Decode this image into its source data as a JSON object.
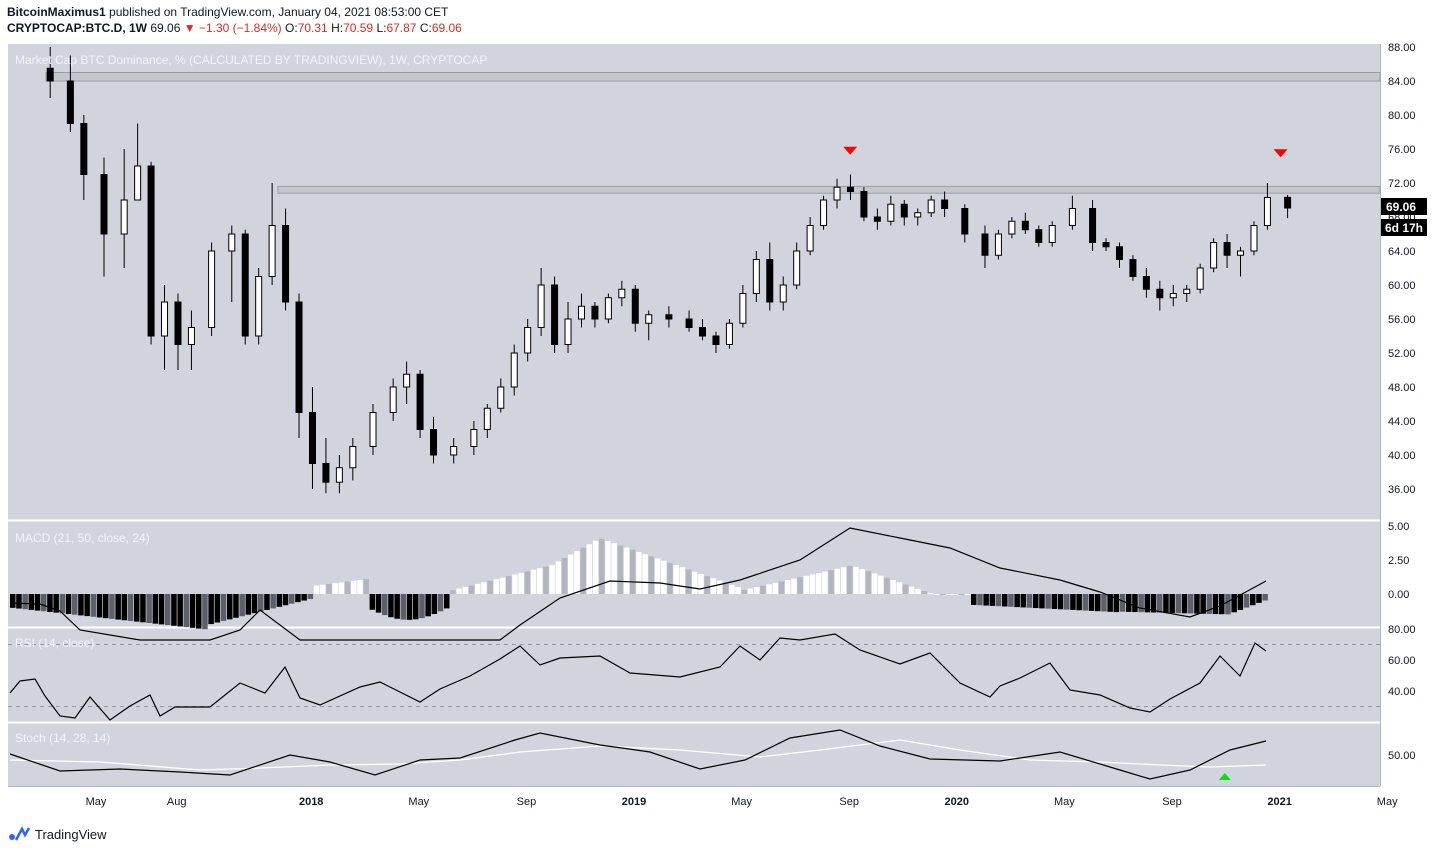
{
  "header": {
    "author": "BitcoinMaximus1",
    "published": "published on TradingView.com, January 04, 2021 08:53:00 CET",
    "symbol": "CRYPTOCAP:BTC.D, 1W",
    "last": "69.06",
    "change": "▼ −1.30 (−1.84%)",
    "o_label": "O:",
    "o": "70.31",
    "h_label": "H:",
    "h": "70.59",
    "l_label": "L:",
    "l": "67.87",
    "c_label": "C:",
    "c": "69.06"
  },
  "price_pane": {
    "title": "Market Cap BTC Dominance, % (CALCULATED BY TRADINGVIEW), 1W, CRYPTOCAP",
    "price_badge": "69.06",
    "countdown_badge": "6d 17h"
  },
  "macd_pane": {
    "title": "MACD (21, 50, close, 24)"
  },
  "rsi_pane": {
    "title": "RSI (14, close)"
  },
  "stoch_pane": {
    "title": "Stoch (14, 28, 14)"
  },
  "footer": {
    "brand": "TradingView"
  },
  "colors": {
    "bg": "#d1d4dc",
    "up_body": "#ffffff",
    "down_body": "#000000",
    "marker_down": "#ff0000",
    "marker_up": "#00e600"
  },
  "chart_data": {
    "type": "candlestick",
    "x_ticks": [
      "May",
      "Aug",
      "2018",
      "May",
      "Sep",
      "2019",
      "May",
      "Sep",
      "2020",
      "May",
      "Sep",
      "2021",
      "May"
    ],
    "y_ticks": [
      "88.00",
      "84.00",
      "80.00",
      "76.00",
      "72.00",
      "68.00",
      "64.00",
      "60.00",
      "56.00",
      "52.00",
      "48.00",
      "44.00",
      "40.00",
      "36.00"
    ],
    "y_range": [
      34.0,
      89.0
    ],
    "resistance_zones": [
      [
        84.0,
        85.0
      ],
      [
        70.8,
        71.6
      ]
    ],
    "sell_markers": [
      {
        "date": "Sep 2019",
        "value": 75.8
      },
      {
        "date": "Jan 2021",
        "value": 75.5
      }
    ],
    "series": [
      {
        "name": "BTC.D",
        "points": [
          [
            "Mar 2017",
            85.5,
            88.0,
            82.0,
            84.0
          ],
          [
            "Apr 2017",
            84.0,
            87.0,
            78.0,
            79.0
          ],
          [
            "Apr 2017",
            79.0,
            80.0,
            70.0,
            73.0
          ],
          [
            "May 2017",
            73.0,
            75.0,
            61.0,
            66.0
          ],
          [
            "Jun 2017",
            66.0,
            76.0,
            62.0,
            70.0
          ],
          [
            "Jun 2017",
            70.0,
            79.0,
            70.0,
            74.0
          ],
          [
            "Jul 2017",
            74.0,
            74.5,
            53.0,
            54.0
          ],
          [
            "Jul 2017",
            54.0,
            60.0,
            50.0,
            58.0
          ],
          [
            "Aug 2017",
            58.0,
            59.0,
            50.0,
            53.0
          ],
          [
            "Aug 2017",
            53.0,
            57.0,
            50.0,
            55.0
          ],
          [
            "Sep 2017",
            55.0,
            65.0,
            54.0,
            64.0
          ],
          [
            "Oct 2017",
            64.0,
            67.0,
            58.0,
            66.0
          ],
          [
            "Oct 2017",
            66.0,
            66.5,
            53.0,
            54.0
          ],
          [
            "Nov 2017",
            54.0,
            62.0,
            53.0,
            61.0
          ],
          [
            "Nov 2017",
            61.0,
            72.0,
            60.0,
            67.0
          ],
          [
            "Dec 2017",
            67.0,
            69.0,
            57.0,
            58.0
          ],
          [
            "Dec 2017",
            58.0,
            59.0,
            42.0,
            45.0
          ],
          [
            "Jan 2018",
            45.0,
            48.0,
            36.0,
            39.0
          ],
          [
            "Jan 2018",
            39.0,
            42.0,
            35.5,
            36.8
          ],
          [
            "Feb 2018",
            36.8,
            40.0,
            35.5,
            38.5
          ],
          [
            "Feb 2018",
            38.5,
            42.0,
            37.0,
            41.0
          ],
          [
            "Mar 2018",
            41.0,
            46.0,
            40.0,
            45.0
          ],
          [
            "Apr 2018",
            45.0,
            49.0,
            44.0,
            48.0
          ],
          [
            "Apr 2018",
            48.0,
            51.0,
            46.0,
            49.5
          ],
          [
            "May 2018",
            49.5,
            50.0,
            42.0,
            43.0
          ],
          [
            "May 2018",
            43.0,
            44.5,
            39.0,
            40.0
          ],
          [
            "Jun 2018",
            40.0,
            42.0,
            39.0,
            41.0
          ],
          [
            "Jul 2018",
            41.0,
            44.0,
            40.0,
            43.0
          ],
          [
            "Jul 2018",
            43.0,
            46.0,
            42.0,
            45.5
          ],
          [
            "Aug 2018",
            45.5,
            49.0,
            45.0,
            48.0
          ],
          [
            "Aug 2018",
            48.0,
            53.0,
            47.0,
            52.0
          ],
          [
            "Sep 2018",
            52.0,
            56.0,
            51.0,
            55.0
          ],
          [
            "Sep 2018",
            55.0,
            62.0,
            54.0,
            60.0
          ],
          [
            "Oct 2018",
            60.0,
            61.0,
            52.0,
            53.0
          ],
          [
            "Oct 2018",
            53.0,
            58.0,
            52.0,
            56.0
          ],
          [
            "Nov 2018",
            56.0,
            59.0,
            55.0,
            57.5
          ],
          [
            "Nov 2018",
            57.5,
            58.0,
            55.0,
            56.0
          ],
          [
            "Dec 2018",
            56.0,
            59.0,
            55.5,
            58.5
          ],
          [
            "Dec 2018",
            58.5,
            60.5,
            57.5,
            59.5
          ],
          [
            "Jan 2019",
            59.5,
            60.0,
            54.5,
            55.5
          ],
          [
            "Jan 2019",
            55.5,
            57.0,
            53.5,
            56.5
          ],
          [
            "Feb 2019",
            56.5,
            57.5,
            55.0,
            56.0
          ],
          [
            "Mar 2019",
            56.0,
            57.0,
            54.5,
            55.0
          ],
          [
            "Mar 2019",
            55.0,
            56.0,
            53.5,
            54.0
          ],
          [
            "Apr 2019",
            54.0,
            54.5,
            52.0,
            53.0
          ],
          [
            "Apr 2019",
            53.0,
            56.0,
            52.5,
            55.5
          ],
          [
            "May 2019",
            55.5,
            60.0,
            55.0,
            59.0
          ],
          [
            "May 2019",
            59.0,
            64.0,
            58.0,
            63.0
          ],
          [
            "Jun 2019",
            63.0,
            65.0,
            57.0,
            58.0
          ],
          [
            "Jun 2019",
            58.0,
            61.0,
            57.0,
            60.0
          ],
          [
            "Jul 2019",
            60.0,
            65.0,
            59.5,
            64.0
          ],
          [
            "Jul 2019",
            64.0,
            68.0,
            63.5,
            67.0
          ],
          [
            "Aug 2019",
            67.0,
            70.5,
            66.5,
            70.0
          ],
          [
            "Aug 2019",
            70.0,
            72.5,
            69.0,
            71.5
          ],
          [
            "Sep 2019",
            71.5,
            73.0,
            70.0,
            71.0
          ],
          [
            "Sep 2019",
            71.0,
            71.5,
            67.5,
            68.0
          ],
          [
            "Oct 2019",
            68.0,
            69.0,
            66.5,
            67.5
          ],
          [
            "Oct 2019",
            67.5,
            70.5,
            67.0,
            69.5
          ],
          [
            "Nov 2019",
            69.5,
            70.0,
            67.0,
            68.0
          ],
          [
            "Nov 2019",
            68.0,
            69.0,
            67.0,
            68.5
          ],
          [
            "Dec 2019",
            68.5,
            70.5,
            68.0,
            70.0
          ],
          [
            "Dec 2019",
            70.0,
            71.0,
            68.0,
            69.0
          ],
          [
            "Jan 2020",
            69.0,
            69.5,
            65.0,
            66.0
          ],
          [
            "Feb 2020",
            66.0,
            67.0,
            62.0,
            63.5
          ],
          [
            "Feb 2020",
            63.5,
            66.5,
            63.0,
            66.0
          ],
          [
            "Mar 2020",
            66.0,
            68.0,
            65.5,
            67.5
          ],
          [
            "Mar 2020",
            67.5,
            68.5,
            66.0,
            66.5
          ],
          [
            "Apr 2020",
            66.5,
            67.0,
            64.5,
            65.0
          ],
          [
            "Apr 2020",
            65.0,
            67.5,
            64.5,
            67.0
          ],
          [
            "May 2020",
            67.0,
            70.5,
            66.5,
            69.0
          ],
          [
            "Jun 2020",
            69.0,
            70.0,
            64.0,
            65.0
          ],
          [
            "Jun 2020",
            65.0,
            65.5,
            64.0,
            64.5
          ],
          [
            "Jul 2020",
            64.5,
            65.0,
            62.0,
            63.0
          ],
          [
            "Jul 2020",
            63.0,
            63.5,
            60.5,
            61.0
          ],
          [
            "Aug 2020",
            61.0,
            62.0,
            58.5,
            59.5
          ],
          [
            "Aug 2020",
            59.5,
            60.5,
            57.0,
            58.5
          ],
          [
            "Sep 2020",
            58.5,
            60.0,
            57.5,
            59.0
          ],
          [
            "Sep 2020",
            59.0,
            60.0,
            58.0,
            59.5
          ],
          [
            "Oct 2020",
            59.5,
            62.5,
            59.0,
            62.0
          ],
          [
            "Oct 2020",
            62.0,
            65.5,
            61.5,
            65.0
          ],
          [
            "Nov 2020",
            65.0,
            66.0,
            62.0,
            63.5
          ],
          [
            "Nov 2020",
            63.5,
            64.5,
            61.0,
            64.0
          ],
          [
            "Dec 2020",
            64.0,
            67.5,
            63.5,
            67.0
          ],
          [
            "Dec 2020",
            67.0,
            72.0,
            66.5,
            70.3
          ],
          [
            "Jan 2021",
            70.31,
            70.59,
            67.87,
            69.06
          ]
        ]
      }
    ],
    "macd": {
      "title": "MACD (21, 50, close, 24)",
      "y_ticks": [
        "5.00",
        "2.50",
        "0.00"
      ],
      "y_range": [
        -2.5,
        5.2
      ]
    },
    "rsi": {
      "title": "RSI (14, close)",
      "y_ticks": [
        "80.00",
        "60.00",
        "40.00"
      ],
      "y_range": [
        20,
        82
      ],
      "levels": [
        70,
        30
      ]
    },
    "stoch": {
      "title": "Stoch (14, 28, 14)",
      "y_ticks": [
        "50.00"
      ],
      "y_range": [
        0,
        100
      ],
      "buy_marker": {
        "date": "Nov 2020"
      }
    }
  }
}
